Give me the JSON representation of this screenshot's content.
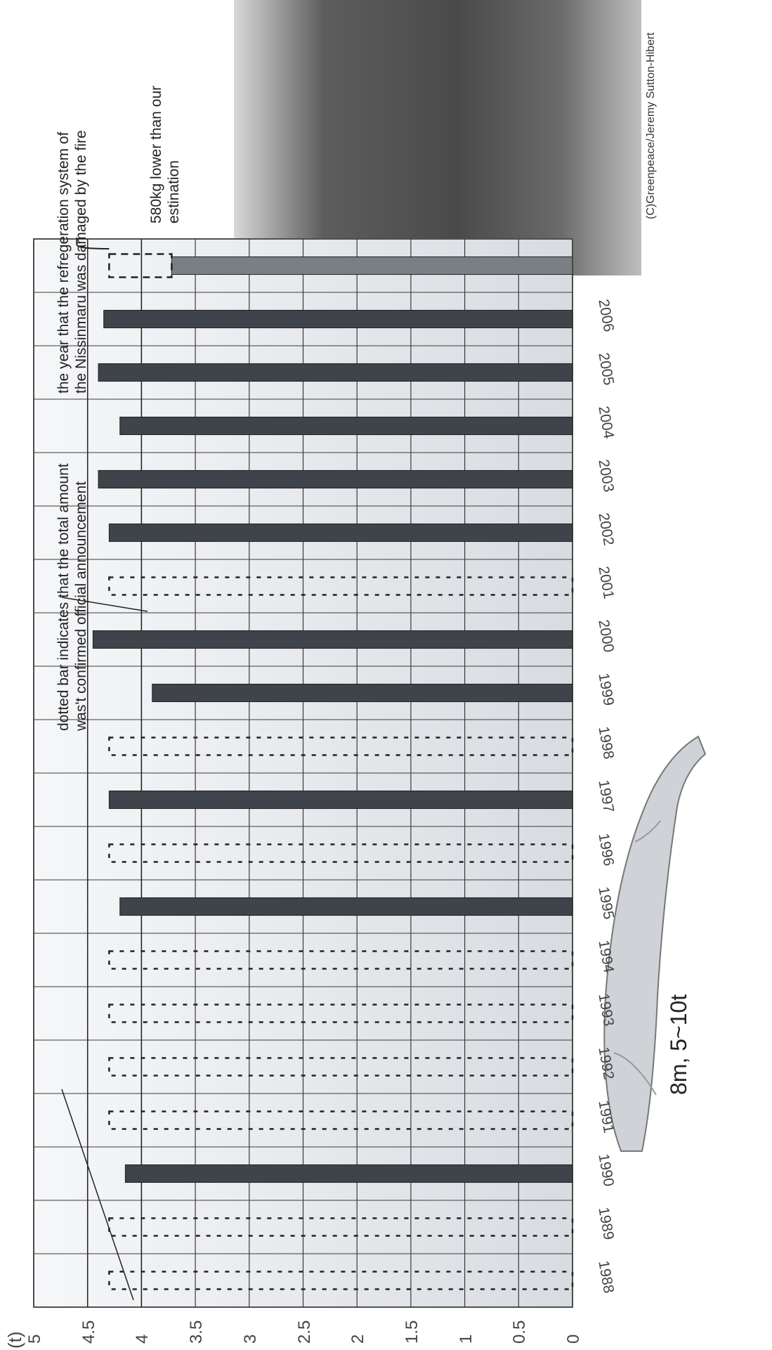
{
  "chart_data": {
    "type": "bar",
    "unit_label": "(t)",
    "ylim": [
      0,
      5
    ],
    "yticks": [
      "0",
      "0.5",
      "1",
      "1.5",
      "2",
      "2.5",
      "3",
      "3.5",
      "4",
      "4.5",
      "5"
    ],
    "categories": [
      "1988",
      "1989",
      "1990",
      "1991",
      "1992",
      "1993",
      "1994",
      "1995",
      "1996",
      "1997",
      "1998",
      "1999",
      "2000",
      "2001",
      "2002",
      "2003",
      "2004",
      "2005",
      "2006"
    ],
    "values": [
      4.3,
      4.3,
      4.15,
      4.3,
      4.3,
      4.3,
      4.3,
      4.2,
      4.3,
      4.3,
      4.3,
      3.9,
      4.45,
      4.3,
      4.3,
      4.4,
      4.2,
      4.4,
      4.35
    ],
    "confirmed": [
      false,
      false,
      true,
      false,
      false,
      false,
      false,
      true,
      false,
      true,
      false,
      true,
      true,
      false,
      true,
      true,
      true,
      true,
      true
    ],
    "extra_bar": {
      "value": 3.72,
      "estimate_value": 4.3
    },
    "reference_lines": [
      4.5,
      4.0
    ],
    "grid": true,
    "annotations": {
      "dotted_note": [
        "dotted bar indicates that the total amount",
        "was't confirmed official announcement"
      ],
      "fire_note": [
        "the year that the refregeration system of",
        "the Nissinmaru was damaged by the fire"
      ],
      "estimate_note": [
        "580kg lower than our",
        "estination"
      ]
    }
  },
  "whale": {
    "label": "8m,  5~10t"
  },
  "photo": {
    "credit": "(C)Greenpeace/Jeremy Sutton-Hibert"
  },
  "colors": {
    "bar": "#3e4449",
    "extra_bar": "#7a7f84",
    "grid": "#3a3a3a",
    "plot_bg": "#e9ebee"
  }
}
